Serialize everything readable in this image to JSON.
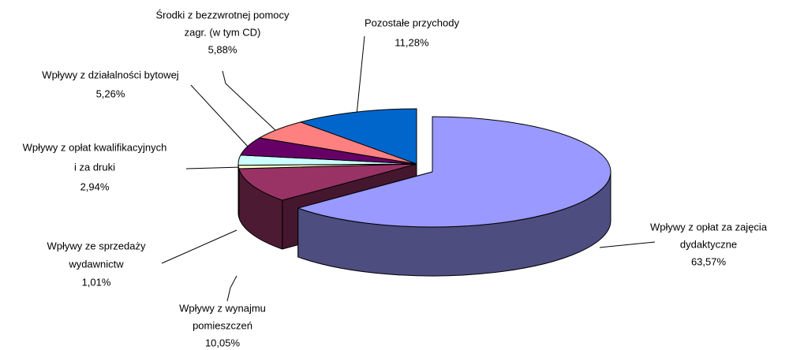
{
  "chart_data": {
    "type": "pie3d",
    "categories": [
      [
        "Wpływy z opłat za zajęcia",
        "dydaktyczne"
      ],
      [
        "Wpływy z wynajmu",
        "pomieszczeń"
      ],
      [
        "Wpływy ze sprzedaży",
        "wydawnictw"
      ],
      [
        "Wpływy z opłat kwalifikacyjnych",
        "i za druki"
      ],
      [
        "Wpływy z działalności bytowej"
      ],
      [
        "Środki z bezzwrotnej pomocy",
        "zagr. (w tym CD)"
      ],
      [
        "Pozostałe przychody"
      ]
    ],
    "values": [
      63.57,
      10.05,
      1.01,
      2.94,
      5.26,
      5.88,
      11.28
    ],
    "value_labels": [
      "63,57%",
      "10,05%",
      "1,01%",
      "2,94%",
      "5,26%",
      "5,88%",
      "11,28%"
    ],
    "colors": [
      "#9999ff",
      "#993366",
      "#ffffcc",
      "#ccffff",
      "#660066",
      "#ff8080",
      "#0066cc"
    ]
  }
}
